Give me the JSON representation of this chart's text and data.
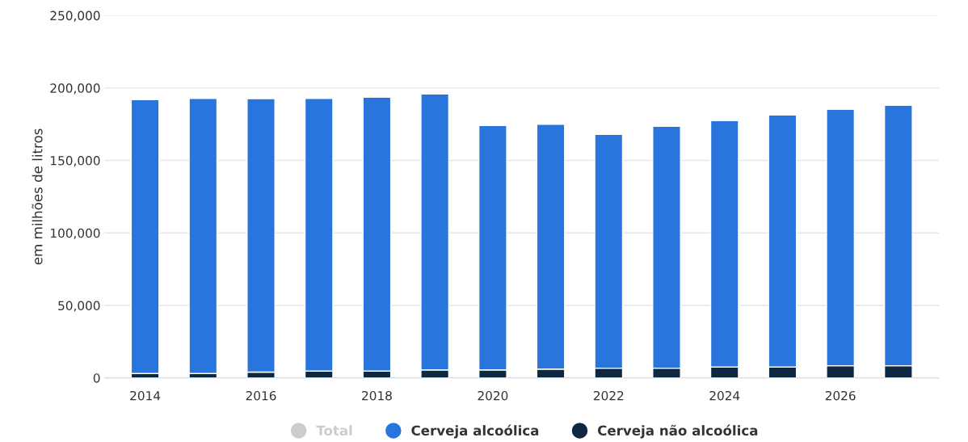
{
  "chart_data": {
    "type": "bar",
    "stacked": true,
    "ylabel": "em milhões de litros",
    "x": [
      2014,
      2015,
      2016,
      2017,
      2018,
      2019,
      2020,
      2021,
      2022,
      2023,
      2024,
      2025,
      2026,
      2027
    ],
    "series": [
      {
        "name": "Cerveja não alcoólica",
        "color": "#0f2841",
        "values": [
          3000,
          3000,
          4000,
          4700,
          4700,
          5500,
          5500,
          6100,
          6700,
          6700,
          7500,
          7500,
          8400,
          8400
        ]
      },
      {
        "name": "Cerveja alcoólica",
        "color": "#2876dd",
        "values": [
          189000,
          189800,
          188600,
          188100,
          188900,
          190400,
          168600,
          168900,
          161300,
          166800,
          170000,
          173900,
          176900,
          179700
        ]
      },
      {
        "name": "Total",
        "color": "#cccccc",
        "values": [
          null,
          null,
          null,
          null,
          null,
          null,
          null,
          null,
          null,
          null,
          null,
          null,
          null,
          null
        ]
      }
    ],
    "xlim": [
      2013.3,
      2027.7
    ],
    "xticks": [
      2014,
      2016,
      2018,
      2020,
      2022,
      2024,
      2026
    ],
    "ylim": [
      0,
      250000
    ],
    "yticks": [
      {
        "value": 0,
        "label": "0"
      },
      {
        "value": 50000,
        "label": "50,000"
      },
      {
        "value": 100000,
        "label": "100,000"
      },
      {
        "value": 150000,
        "label": "150,000"
      },
      {
        "value": 200000,
        "label": "200,000"
      },
      {
        "value": 250000,
        "label": "250,000"
      }
    ],
    "grid": "y",
    "legend": "bottom"
  }
}
